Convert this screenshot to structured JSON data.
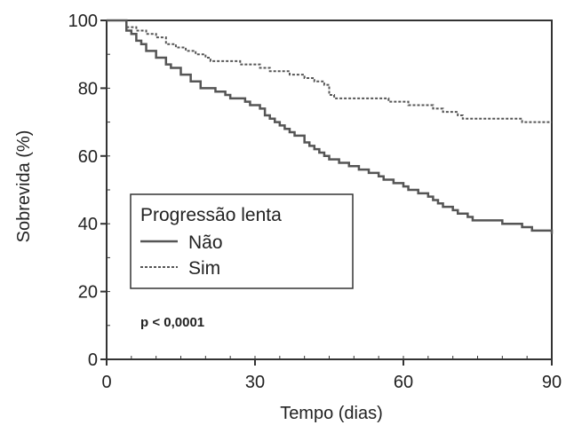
{
  "chart_data": {
    "type": "line",
    "xlabel": "Tempo (dias)",
    "ylabel": "Sobrevida (%)",
    "xlim": [
      0,
      90
    ],
    "ylim": [
      0,
      100
    ],
    "x_ticks": [
      "0",
      "30",
      "60",
      "90"
    ],
    "y_ticks": [
      "0",
      "20",
      "40",
      "60",
      "80",
      "100"
    ],
    "grid": false,
    "legend": {
      "title": "Progressão lenta",
      "placement": "center-left",
      "entries": [
        {
          "label": "Não",
          "style": "solid"
        },
        {
          "label": "Sim",
          "style": "dashed"
        }
      ]
    },
    "annotation": "p < 0,0001",
    "series": [
      {
        "label_ref": 0,
        "style": "solid",
        "color": "#555555",
        "x": [
          0,
          3,
          4,
          5,
          6,
          7,
          8,
          10,
          12,
          13,
          15,
          17,
          19,
          20,
          22,
          24,
          25,
          28,
          29,
          30,
          31,
          32,
          33,
          34,
          35,
          36,
          37,
          38,
          40,
          41,
          42,
          43,
          44,
          45,
          47,
          49,
          51,
          53,
          55,
          56,
          57,
          58,
          60,
          61,
          63,
          65,
          66,
          67,
          68,
          70,
          71,
          73,
          74,
          76,
          78,
          80,
          84,
          86,
          89,
          90
        ],
        "y": [
          100,
          100,
          97,
          96,
          94,
          93,
          91,
          89,
          87,
          86,
          84,
          82,
          80,
          80,
          79,
          78,
          77,
          76,
          75,
          75,
          74,
          72,
          71,
          70,
          69,
          68,
          67,
          66,
          64,
          63,
          62,
          61,
          60,
          59,
          58,
          57,
          56,
          55,
          54,
          53,
          53,
          52,
          51,
          50,
          49,
          48,
          47,
          46,
          45,
          44,
          43,
          42,
          41,
          41,
          41,
          40,
          39,
          38,
          38,
          37
        ]
      },
      {
        "label_ref": 1,
        "style": "dashed",
        "color": "#555555",
        "x": [
          0,
          3,
          4,
          6,
          8,
          10,
          12,
          14,
          16,
          18,
          20,
          21,
          23,
          25,
          27,
          29,
          31,
          33,
          35,
          37,
          40,
          42,
          44,
          45,
          46,
          48,
          51,
          54,
          57,
          59,
          61,
          63,
          66,
          68,
          71,
          72,
          74,
          76,
          78,
          80,
          84,
          86,
          88,
          90
        ],
        "y": [
          100,
          100,
          98,
          97,
          96,
          95,
          93,
          92,
          91,
          90,
          89,
          88,
          88,
          88,
          87,
          87,
          86,
          85,
          85,
          84,
          83,
          82,
          81,
          78,
          77,
          77,
          77,
          77,
          76,
          76,
          75,
          75,
          74,
          73,
          72,
          71,
          71,
          71,
          71,
          71,
          70,
          70,
          70,
          70
        ]
      }
    ]
  }
}
